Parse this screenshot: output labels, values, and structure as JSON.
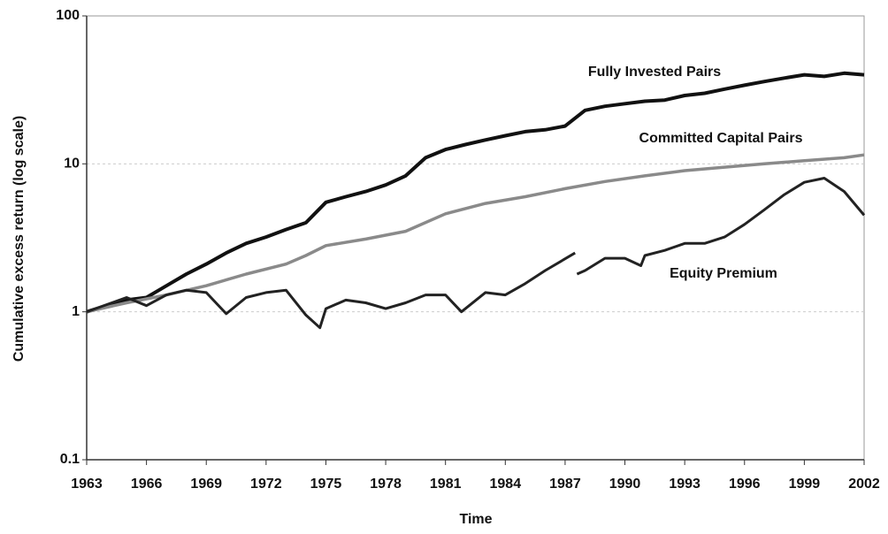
{
  "chart_data": {
    "type": "line",
    "ylabel": "Cumulative excess return (log scale)",
    "xlabel": "Time",
    "log_scale_y": true,
    "grid": true,
    "xlim": [
      1963,
      2002
    ],
    "xticks": [
      1963,
      1966,
      1969,
      1972,
      1975,
      1978,
      1981,
      1984,
      1987,
      1990,
      1993,
      1996,
      1999,
      2002
    ],
    "ylim": [
      0.1,
      100
    ],
    "yticks": [
      0.1,
      1,
      10,
      100
    ],
    "series": [
      {
        "name": "Fully Invested Pairs",
        "color": "#111111",
        "x": [
          1963,
          1964,
          1965,
          1966,
          1967,
          1968,
          1969,
          1970,
          1971,
          1972,
          1973,
          1974,
          1975,
          1976,
          1977,
          1978,
          1979,
          1980,
          1981,
          1982,
          1983,
          1984,
          1985,
          1986,
          1987,
          1988,
          1989,
          1990,
          1991,
          1992,
          1993,
          1994,
          1995,
          1996,
          1997,
          1998,
          1999,
          2000,
          2001,
          2002
        ],
        "values": [
          1,
          1.1,
          1.2,
          1.25,
          1.5,
          1.8,
          2.1,
          2.5,
          2.9,
          3.2,
          3.6,
          4.0,
          5.5,
          6.0,
          6.5,
          7.2,
          8.3,
          11,
          12.5,
          13.5,
          14.5,
          15.5,
          16.5,
          17,
          18,
          23,
          24.5,
          25.5,
          26.5,
          27,
          29,
          30,
          32,
          34,
          36,
          38,
          40,
          39,
          41,
          40
        ]
      },
      {
        "name": "Committed Capital Pairs",
        "color": "#8a8a8a",
        "x": [
          1963,
          1965,
          1967,
          1969,
          1971,
          1973,
          1974,
          1975,
          1977,
          1979,
          1981,
          1983,
          1985,
          1987,
          1989,
          1991,
          1993,
          1995,
          1997,
          1999,
          2001,
          2002
        ],
        "values": [
          1,
          1.15,
          1.3,
          1.5,
          1.8,
          2.1,
          2.4,
          2.8,
          3.1,
          3.5,
          4.6,
          5.4,
          6.0,
          6.8,
          7.6,
          8.3,
          9.0,
          9.5,
          10,
          10.5,
          11,
          11.5
        ]
      },
      {
        "name": "Equity Premium",
        "color": "#222222",
        "x": [
          1963,
          1965,
          1966,
          1967,
          1968,
          1969,
          1970,
          1971,
          1972,
          1973,
          1974,
          1974.7,
          1975,
          1976,
          1977,
          1978,
          1979,
          1980,
          1981,
          1981.8,
          1983,
          1984,
          1985,
          1986,
          1987.5,
          1987.55,
          1987.6,
          1988,
          1989,
          1990,
          1990.8,
          1991,
          1992,
          1993,
          1994,
          1995,
          1996,
          1997,
          1998,
          1999,
          2000,
          2001,
          2002
        ],
        "values": [
          1,
          1.25,
          1.1,
          1.3,
          1.4,
          1.35,
          0.97,
          1.25,
          1.35,
          1.4,
          0.95,
          0.78,
          1.05,
          1.2,
          1.15,
          1.05,
          1.15,
          1.3,
          1.3,
          1.0,
          1.35,
          1.3,
          1.55,
          1.9,
          2.5,
          null,
          1.8,
          1.9,
          2.3,
          2.3,
          2.05,
          2.4,
          2.6,
          2.9,
          2.9,
          3.2,
          3.9,
          4.9,
          6.2,
          7.5,
          8.0,
          6.5,
          4.5
        ]
      }
    ]
  }
}
